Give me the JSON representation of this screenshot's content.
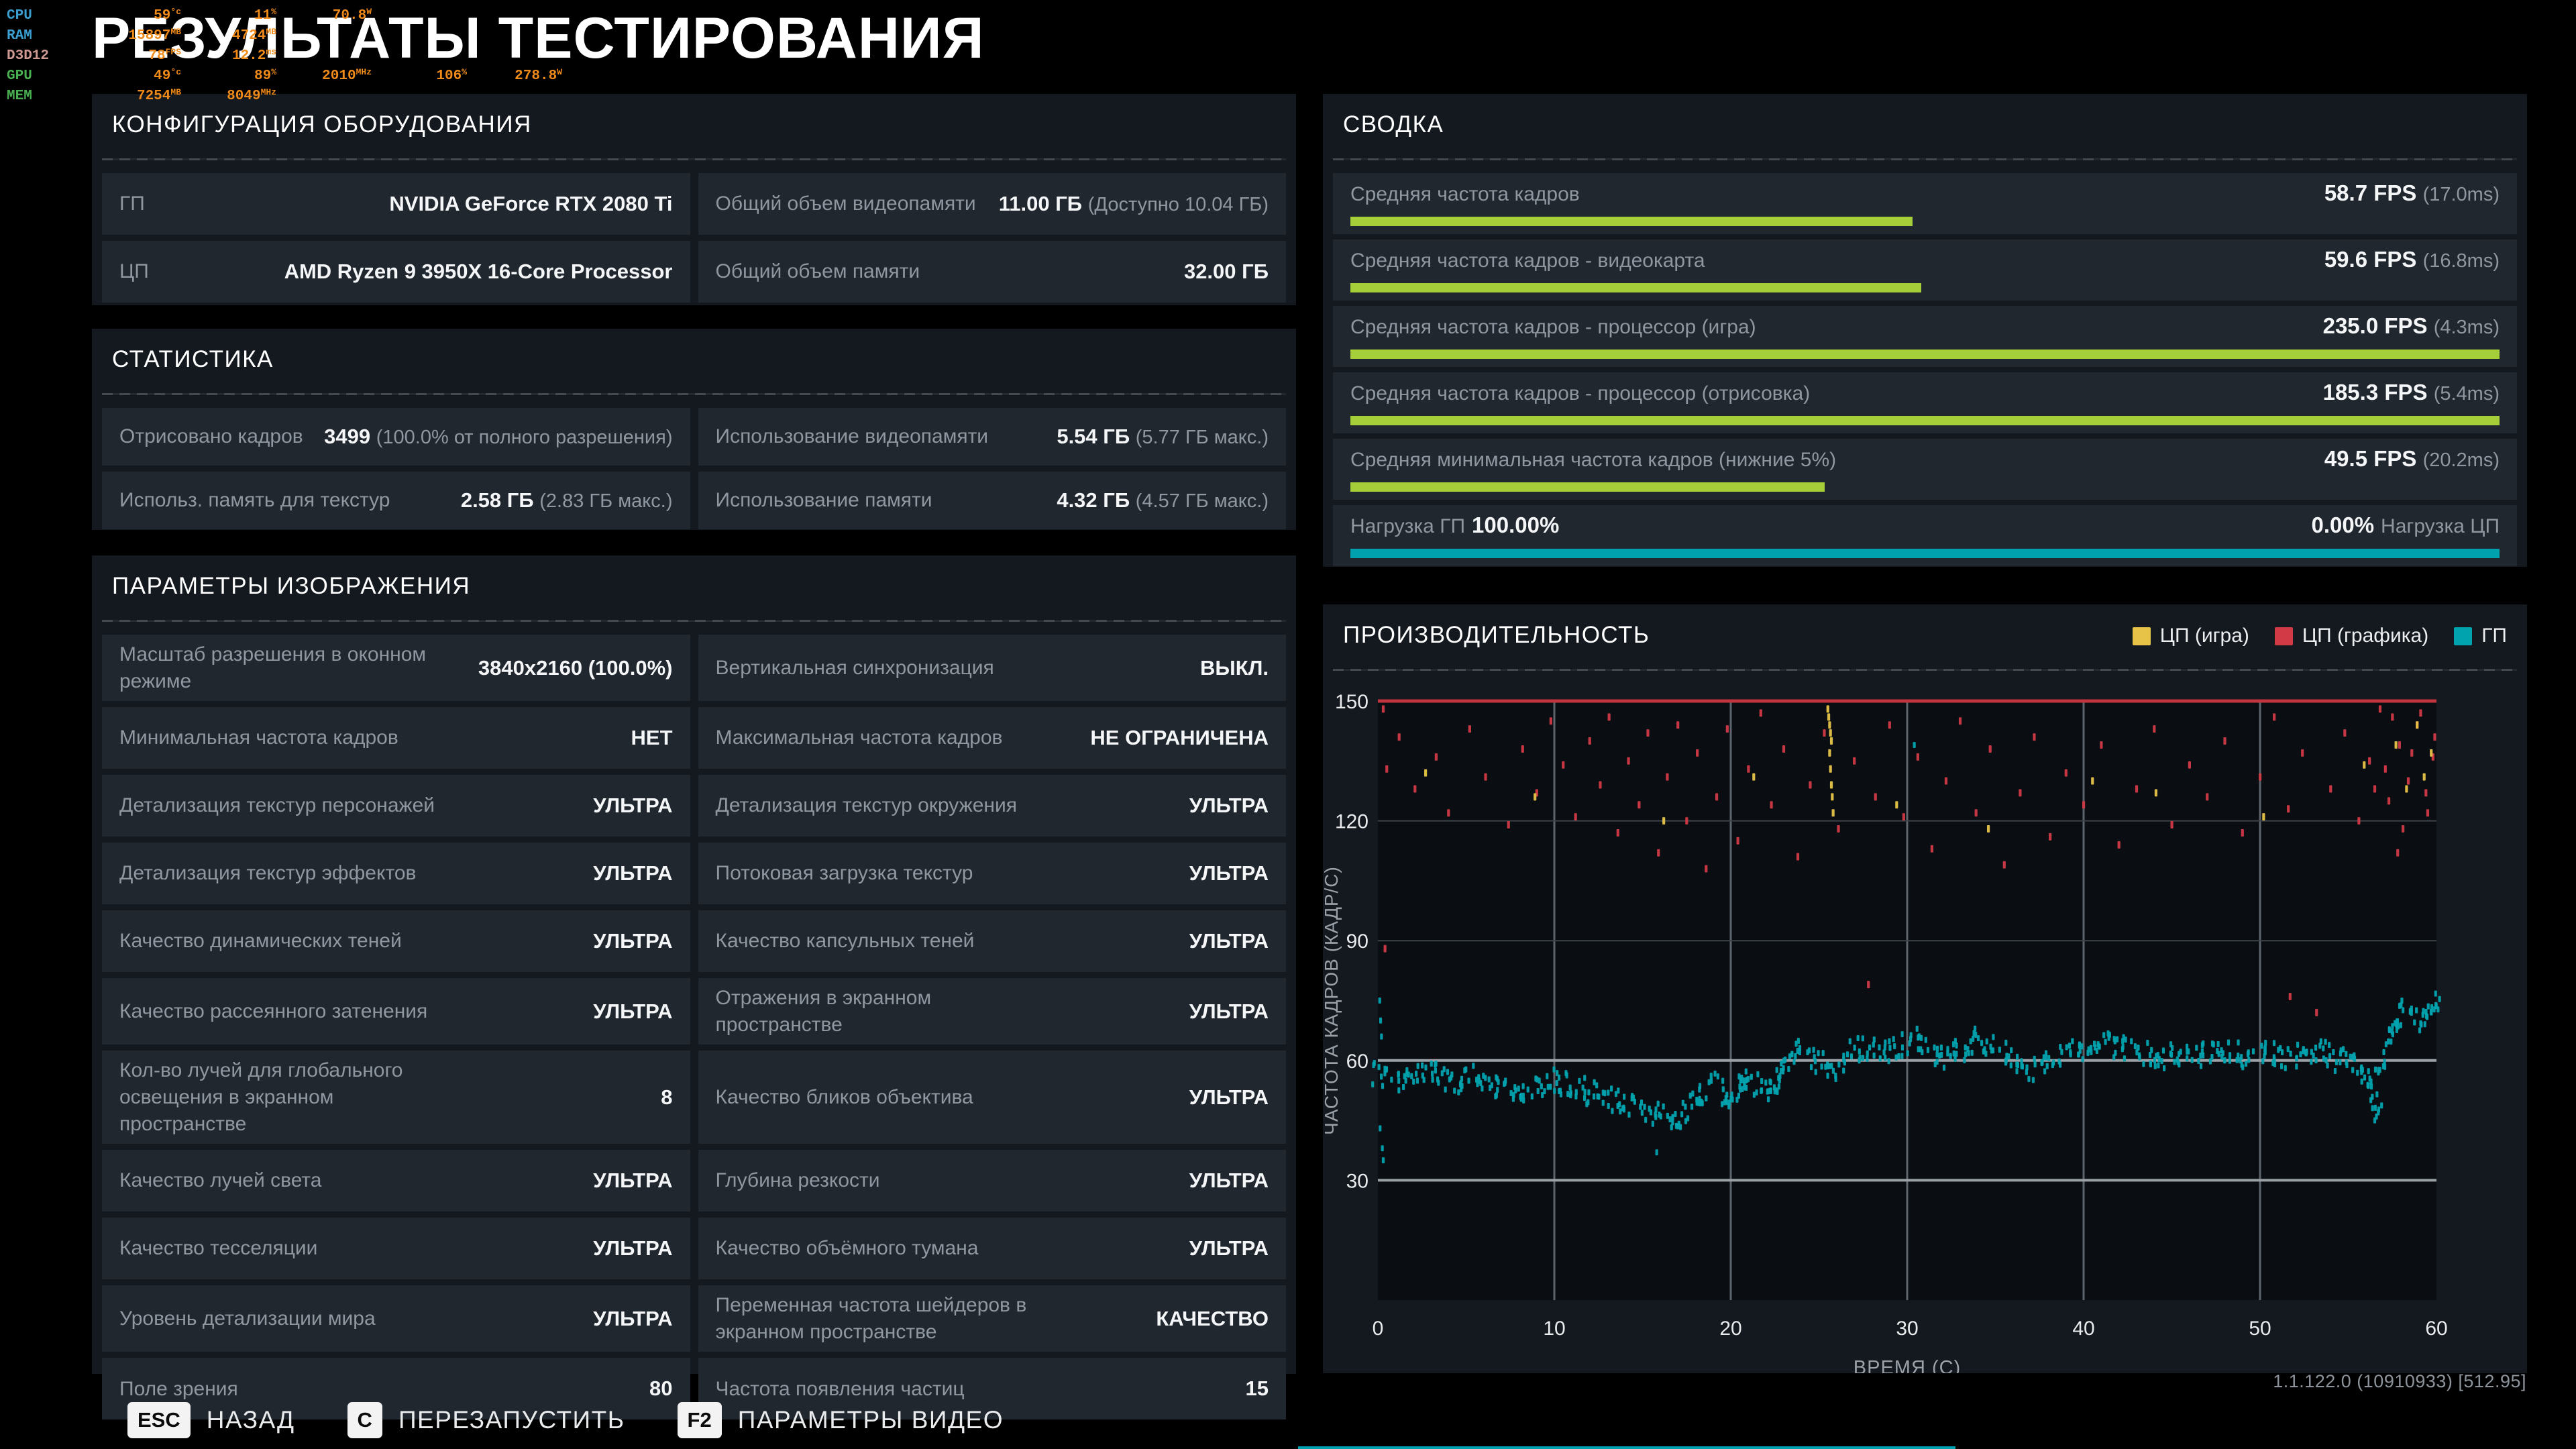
{
  "title": "РЕЗУЛЬТАТЫ ТЕСТИРОВАНИЯ",
  "colors": {
    "green": "#a6ce39",
    "teal": "#00a1ae",
    "red": "#c9343f",
    "yellow": "#e7c448",
    "panel": "#14191f",
    "row": "#21272f"
  },
  "overlay": {
    "rows": [
      {
        "label": "CPU",
        "label_color": "#3b9fd1",
        "values": [
          [
            "59",
            "°c"
          ],
          [
            "11",
            "%"
          ],
          [
            "70.8",
            "W"
          ]
        ]
      },
      {
        "label": "RAM",
        "label_color": "#3b9fd1",
        "values": [
          [
            "15897",
            "MB"
          ],
          [
            "4724",
            "MB"
          ]
        ]
      },
      {
        "label": "D3D12",
        "label_color": "#cf9a94",
        "values": [
          [
            "78",
            "FPS"
          ],
          [
            "12.2",
            "ms"
          ]
        ]
      },
      {
        "label": "GPU",
        "label_color": "#49b052",
        "values": [
          [
            "49",
            "°c"
          ],
          [
            "89",
            "%"
          ],
          [
            "2010",
            "MHz"
          ],
          [
            "106",
            "%"
          ],
          [
            "278.8",
            "W"
          ]
        ]
      },
      {
        "label": "MEM",
        "label_color": "#49b052",
        "values": [
          [
            "7254",
            "MB"
          ],
          [
            "8049",
            "MHz"
          ]
        ]
      }
    ]
  },
  "config": {
    "title": "КОНФИГУРАЦИЯ ОБОРУДОВАНИЯ",
    "rows": [
      [
        {
          "label": "ГП",
          "value": "NVIDIA GeForce RTX 2080 Ti",
          "note": ""
        },
        {
          "label": "Общий объем видеопамяти",
          "value": "11.00 ГБ",
          "note": "(Доступно 10.04 ГБ)"
        }
      ],
      [
        {
          "label": "ЦП",
          "value": "AMD Ryzen 9 3950X 16-Core Processor",
          "note": ""
        },
        {
          "label": "Общий объем памяти",
          "value": "32.00 ГБ",
          "note": ""
        }
      ]
    ]
  },
  "stats": {
    "title": "СТАТИСТИКА",
    "rows": [
      [
        {
          "label": "Отрисовано кадров",
          "value": "3499",
          "note": "(100.0% от полного разрешения)"
        },
        {
          "label": "Использование видеопамяти",
          "value": "5.54 ГБ",
          "note": "(5.77 ГБ макс.)"
        }
      ],
      [
        {
          "label": "Использ. память для текстур",
          "value": "2.58 ГБ",
          "note": "(2.83 ГБ макс.)"
        },
        {
          "label": "Использование памяти",
          "value": "4.32 ГБ",
          "note": "(4.57 ГБ макс.)"
        }
      ]
    ]
  },
  "params": {
    "title": "ПАРАМЕТРЫ ИЗОБРАЖЕНИЯ",
    "rows": [
      [
        {
          "label": "Масштаб разрешения в оконном режиме",
          "value": "3840x2160 (100.0%)",
          "note": ""
        },
        {
          "label": "Вертикальная синхронизация",
          "value": "ВЫКЛ.",
          "note": ""
        }
      ],
      [
        {
          "label": "Минимальная частота кадров",
          "value": "НЕТ",
          "note": ""
        },
        {
          "label": "Максимальная частота кадров",
          "value": "НЕ ОГРАНИЧЕНА",
          "note": ""
        }
      ],
      [
        {
          "label": "Детализация текстур персонажей",
          "value": "УЛЬТРА",
          "note": ""
        },
        {
          "label": "Детализация текстур окружения",
          "value": "УЛЬТРА",
          "note": ""
        }
      ],
      [
        {
          "label": "Детализация текстур эффектов",
          "value": "УЛЬТРА",
          "note": ""
        },
        {
          "label": "Потоковая загрузка текстур",
          "value": "УЛЬТРА",
          "note": ""
        }
      ],
      [
        {
          "label": "Качество динамических теней",
          "value": "УЛЬТРА",
          "note": ""
        },
        {
          "label": "Качество капсульных теней",
          "value": "УЛЬТРА",
          "note": ""
        }
      ],
      [
        {
          "label": "Качество рассеянного затенения",
          "value": "УЛЬТРА",
          "note": ""
        },
        {
          "label": "Отражения в экранном пространстве",
          "value": "УЛЬТРА",
          "note": ""
        }
      ],
      [
        {
          "label": "Кол-во лучей для глобального освещения в экранном пространстве",
          "value": "8",
          "note": ""
        },
        {
          "label": "Качество бликов объектива",
          "value": "УЛЬТРА",
          "note": ""
        }
      ],
      [
        {
          "label": "Качество лучей света",
          "value": "УЛЬТРА",
          "note": ""
        },
        {
          "label": "Глубина резкости",
          "value": "УЛЬТРА",
          "note": ""
        }
      ],
      [
        {
          "label": "Качество тесселяции",
          "value": "УЛЬТРА",
          "note": ""
        },
        {
          "label": "Качество объёмного тумана",
          "value": "УЛЬТРА",
          "note": ""
        }
      ],
      [
        {
          "label": "Уровень детализации мира",
          "value": "УЛЬТРА",
          "note": ""
        },
        {
          "label": "Переменная частота шейдеров в экранном пространстве",
          "value": "КАЧЕСТВО",
          "note": ""
        }
      ],
      [
        {
          "label": "Поле зрения",
          "value": "80",
          "note": ""
        },
        {
          "label": "Частота появления частиц",
          "value": "15",
          "note": ""
        }
      ]
    ]
  },
  "summary": {
    "title": "СВОДКА",
    "metrics": [
      {
        "label": "Средняя частота кадров",
        "value": "58.7 FPS",
        "note": "(17.0ms)",
        "bar_pct": 48.9,
        "bar_color": "#a6ce39"
      },
      {
        "label": "Средняя частота кадров - видеокарта",
        "value": "59.6 FPS",
        "note": "(16.8ms)",
        "bar_pct": 49.7,
        "bar_color": "#a6ce39"
      },
      {
        "label": "Средняя частота кадров - процессор (игра)",
        "value": "235.0 FPS",
        "note": "(4.3ms)",
        "bar_pct": 100,
        "bar_color": "#a6ce39"
      },
      {
        "label": "Средняя частота кадров - процессор (отрисовка)",
        "value": "185.3 FPS",
        "note": "(5.4ms)",
        "bar_pct": 100,
        "bar_color": "#a6ce39"
      },
      {
        "label": "Средняя минимальная частота кадров (нижние 5%)",
        "value": "49.5 FPS",
        "note": "(20.2ms)",
        "bar_pct": 41.3,
        "bar_color": "#a6ce39"
      }
    ],
    "load_row": {
      "left_label": "Нагрузка ГП",
      "left_value": "100.00%",
      "right_value": "0.00%",
      "right_label": "Нагрузка ЦП",
      "bar_pct": 100,
      "bar_color": "#00a1ae"
    }
  },
  "performance": {
    "title": "ПРОИЗВОДИТЕЛЬНОСТЬ"
  },
  "chart_data": {
    "type": "scatter",
    "title": "ПРОИЗВОДИТЕЛЬНОСТЬ",
    "xlabel": "ВРЕМЯ (С)",
    "ylabel": "ЧАСТОТА КАДРОВ (КАДР/С)",
    "xlim": [
      0,
      60
    ],
    "ylim": [
      0,
      150
    ],
    "xticks": [
      0,
      10,
      20,
      30,
      40,
      50,
      60
    ],
    "yticks": [
      30,
      60,
      90,
      120,
      150
    ],
    "grid": true,
    "legend_position": "top-right",
    "legend": [
      {
        "name": "ЦП (игра)",
        "color": "#e7c448"
      },
      {
        "name": "ЦП (графика)",
        "color": "#d23a46"
      },
      {
        "name": "ГП",
        "color": "#00a3ae"
      }
    ],
    "cap_line": {
      "y": 150,
      "color": "#c13440"
    },
    "series": [
      {
        "name": "ГП",
        "color": "#00a3ae",
        "kind": "band",
        "x_start": 0,
        "x_step": 0.5,
        "mean": [
          57,
          56,
          55,
          56,
          57,
          58,
          57,
          56,
          55,
          54,
          55,
          56,
          55,
          54,
          53,
          52,
          52,
          52,
          53,
          54,
          55,
          54,
          53,
          53,
          52,
          52,
          51,
          50,
          50,
          49,
          48,
          47,
          47,
          46,
          46,
          47,
          49,
          52,
          54,
          52,
          50,
          53,
          56,
          54,
          52,
          55,
          58,
          60,
          62,
          61,
          59,
          57,
          58,
          60,
          62,
          63,
          64,
          63,
          62,
          63,
          64,
          65,
          64,
          62,
          61,
          62,
          63,
          64,
          65,
          64,
          63,
          62,
          60,
          59,
          58,
          59,
          60,
          61,
          62,
          63,
          63,
          63,
          64,
          64,
          63,
          63,
          62,
          62,
          61,
          61,
          62,
          62,
          61,
          61,
          62,
          62,
          61,
          62,
          61,
          61,
          61,
          62,
          61,
          61,
          61,
          60,
          61,
          62,
          61,
          60,
          61,
          60,
          55,
          48,
          60,
          68,
          72,
          71,
          70,
          71,
          74
        ],
        "outliers": [
          [
            0.1,
            75
          ],
          [
            0.15,
            70
          ],
          [
            0.2,
            66
          ],
          [
            0.12,
            43
          ],
          [
            0.25,
            38
          ],
          [
            0.3,
            35
          ],
          [
            15.8,
            37
          ],
          [
            56.5,
            45
          ],
          [
            56.7,
            47
          ],
          [
            30.4,
            139
          ]
        ]
      },
      {
        "name": "ЦП (графика)",
        "color": "#d23a46",
        "kind": "scatter",
        "points": [
          [
            0.3,
            148
          ],
          [
            0.5,
            133
          ],
          [
            0.4,
            88
          ],
          [
            1.2,
            141
          ],
          [
            2.1,
            128
          ],
          [
            3.3,
            136
          ],
          [
            4.0,
            122
          ],
          [
            5.2,
            143
          ],
          [
            6.1,
            131
          ],
          [
            7.4,
            119
          ],
          [
            8.2,
            138
          ],
          [
            9.0,
            127
          ],
          [
            9.8,
            145
          ],
          [
            10.5,
            134
          ],
          [
            11.2,
            121
          ],
          [
            12.0,
            140
          ],
          [
            12.6,
            129
          ],
          [
            13.1,
            146
          ],
          [
            13.6,
            117
          ],
          [
            14.2,
            135
          ],
          [
            14.8,
            124
          ],
          [
            15.3,
            142
          ],
          [
            15.9,
            112
          ],
          [
            16.4,
            131
          ],
          [
            17.0,
            144
          ],
          [
            17.5,
            120
          ],
          [
            18.1,
            137
          ],
          [
            18.6,
            108
          ],
          [
            19.2,
            126
          ],
          [
            19.8,
            143
          ],
          [
            20.4,
            115
          ],
          [
            21.0,
            133
          ],
          [
            21.7,
            147
          ],
          [
            22.3,
            124
          ],
          [
            23.0,
            138
          ],
          [
            23.8,
            111
          ],
          [
            24.5,
            129
          ],
          [
            25.3,
            142
          ],
          [
            26.1,
            118
          ],
          [
            27.0,
            135
          ],
          [
            27.8,
            79
          ],
          [
            28.2,
            126
          ],
          [
            29.0,
            144
          ],
          [
            29.8,
            121
          ],
          [
            30.6,
            136
          ],
          [
            31.4,
            113
          ],
          [
            32.2,
            130
          ],
          [
            33.0,
            145
          ],
          [
            33.9,
            122
          ],
          [
            34.7,
            138
          ],
          [
            35.5,
            109
          ],
          [
            36.4,
            127
          ],
          [
            37.2,
            141
          ],
          [
            38.1,
            116
          ],
          [
            39.0,
            132
          ],
          [
            40.0,
            124
          ],
          [
            41.0,
            139
          ],
          [
            42.0,
            114
          ],
          [
            43.0,
            128
          ],
          [
            44.0,
            143
          ],
          [
            45.0,
            119
          ],
          [
            46.0,
            134
          ],
          [
            47.0,
            126
          ],
          [
            48.0,
            140
          ],
          [
            49.0,
            117
          ],
          [
            50.0,
            131
          ],
          [
            50.8,
            146
          ],
          [
            51.6,
            123
          ],
          [
            51.7,
            76
          ],
          [
            52.4,
            137
          ],
          [
            53.2,
            72
          ],
          [
            54.0,
            128
          ],
          [
            54.8,
            142
          ],
          [
            55.6,
            120
          ],
          [
            56.2,
            135
          ],
          [
            56.5,
            128
          ],
          [
            56.8,
            148
          ],
          [
            57.1,
            133
          ],
          [
            57.3,
            125
          ],
          [
            57.5,
            146
          ],
          [
            57.8,
            112
          ],
          [
            57.9,
            139
          ],
          [
            58.1,
            118
          ],
          [
            58.4,
            130
          ],
          [
            58.6,
            137
          ],
          [
            58.9,
            144
          ],
          [
            59.1,
            147
          ],
          [
            59.4,
            127
          ],
          [
            59.5,
            122
          ],
          [
            59.8,
            136
          ],
          [
            59.9,
            141
          ]
        ]
      },
      {
        "name": "ЦП (игра)",
        "color": "#e7c448",
        "kind": "scatter",
        "points": [
          [
            25.5,
            148
          ],
          [
            25.55,
            146
          ],
          [
            25.6,
            144
          ],
          [
            25.65,
            142
          ],
          [
            25.7,
            140
          ],
          [
            25.6,
            137
          ],
          [
            25.65,
            133
          ],
          [
            25.7,
            129
          ],
          [
            25.75,
            126
          ],
          [
            25.8,
            122
          ],
          [
            21.3,
            131
          ],
          [
            34.6,
            118
          ],
          [
            44.1,
            127
          ],
          [
            50.2,
            121
          ],
          [
            55.9,
            134
          ],
          [
            57.7,
            139
          ],
          [
            58.3,
            128
          ],
          [
            58.9,
            144
          ],
          [
            59.3,
            131
          ],
          [
            59.7,
            137
          ],
          [
            2.7,
            132
          ],
          [
            8.9,
            126
          ],
          [
            16.2,
            120
          ],
          [
            29.4,
            124
          ],
          [
            40.5,
            130
          ]
        ]
      }
    ]
  },
  "footer": {
    "shortcuts": [
      {
        "key": "ESC",
        "label": "НАЗАД"
      },
      {
        "key": "C",
        "label": "ПЕРЕЗАПУСТИТЬ"
      },
      {
        "key": "F2",
        "label": "ПАРАМЕТРЫ ВИДЕО"
      }
    ],
    "version": "1.1.122.0 (10910933) [512.95]"
  }
}
